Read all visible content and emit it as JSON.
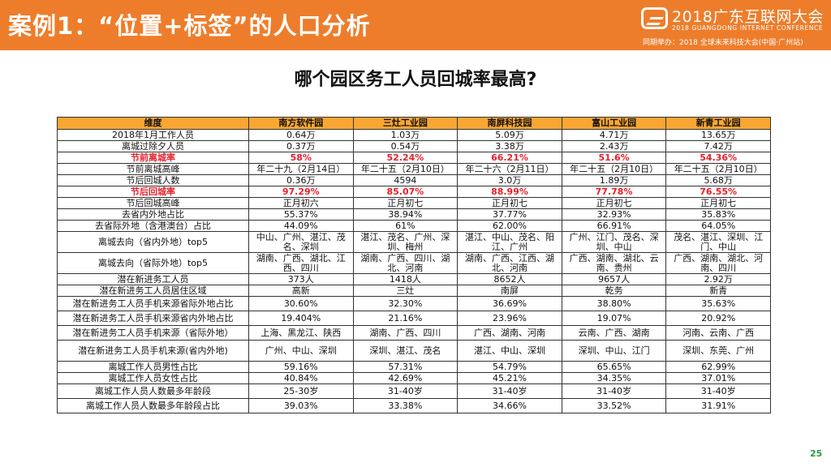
{
  "header": {
    "title": "案例1：“位置+标签”的人口分析",
    "logo_title": "2018广东互联网大会",
    "logo_subtitle": "2018 GUANGDONG INTERNET CONFERENCE",
    "logo_cohost": "同期举办：2018 全球未来科技大会(中国·广州站)"
  },
  "question": "哪个园区务工人员回城率最高?",
  "table": {
    "columns": [
      "维度",
      "南方软件园",
      "三灶工业园",
      "南屏科技园",
      "富山工业园",
      "新青工业园"
    ],
    "rows": [
      {
        "style": "",
        "cells": [
          "2018年1月工作人员",
          "0.64万",
          "1.03万",
          "5.09万",
          "4.71万",
          "13.65万"
        ]
      },
      {
        "style": "",
        "cells": [
          "离城过除夕人员",
          "0.37万",
          "0.54万",
          "3.38万",
          "2.43万",
          "7.42万"
        ]
      },
      {
        "style": "hl",
        "cells": [
          "节前离城率",
          "58%",
          "52.24%",
          "66.21%",
          "51.6%",
          "54.36%"
        ]
      },
      {
        "style": "",
        "cells": [
          "节前离城高峰",
          "年二十九（2月14日）",
          "年二十五（2月10日）",
          "年二十六（2月11日）",
          "年二十五（2月10日）",
          "年二十五（2月10日）"
        ]
      },
      {
        "style": "",
        "cells": [
          "节后回城人数",
          "0.36万",
          "4594",
          "3.0万",
          "1.89万",
          "5.68万"
        ]
      },
      {
        "style": "hl",
        "cells": [
          "节后回城率",
          "97.29%",
          "85.07%",
          "88.99%",
          "77.78%",
          "76.55%"
        ]
      },
      {
        "style": "",
        "cells": [
          "节后回城高峰",
          "正月初六",
          "正月初七",
          "正月初七",
          "正月初七",
          "正月初七"
        ]
      },
      {
        "style": "",
        "cells": [
          "去省内外地占比",
          "55.37%",
          "38.94%",
          "37.77%",
          "32.93%",
          "35.83%"
        ]
      },
      {
        "style": "",
        "cells": [
          "去省际外地（含港澳台）占比",
          "44.09%",
          "61%",
          "62.00%",
          "66.91%",
          "64.05%"
        ]
      },
      {
        "style": "tall",
        "cells": [
          "离城去向（省内外地）top5",
          "中山、广州、湛江、茂名、深圳",
          "湛江、茂名、广州、深圳、梅州",
          "湛江、中山、茂名、阳江、广州",
          "广州、江门、茂名、深圳、中山",
          "茂名、湛江、深圳、江门、中山"
        ]
      },
      {
        "style": "tall",
        "cells": [
          "离城去向（省际外地）top5",
          "湖南、广西、湖北、江西、四川",
          "湖南、广西、四川、湖北、河南",
          "湖南、广西、江西、湖北、河南",
          "广西、湖南、湖北、云南、贵州",
          "广西、湖南、湖北、河南、四川"
        ]
      },
      {
        "style": "",
        "cells": [
          "潜在新进务工人员",
          "373人",
          "1418人",
          "8652人",
          "9657人",
          "2.92万"
        ]
      },
      {
        "style": "",
        "cells": [
          "潜在新进务工人员居住区域",
          "高新",
          "三灶",
          "南屏",
          "乾务",
          "新青"
        ]
      },
      {
        "style": "mid",
        "cells": [
          "潜在新进务工人员手机来源省际外地占比",
          "30.60%",
          "32.30%",
          "36.69%",
          "38.80%",
          "35.63%"
        ]
      },
      {
        "style": "mid",
        "cells": [
          "潜在新进务工人员手机来源省内外地占比",
          "19.404%",
          "21.16%",
          "23.96%",
          "19.07%",
          "20.92%"
        ]
      },
      {
        "style": "mid",
        "cells": [
          "潜在新进务工人员手机来源（省际外地）",
          "上海、黑龙江、陕西",
          "湖南、广西、四川",
          "广西、湖南、河南",
          "云南、广西、湖南",
          "河南、云南、广西"
        ]
      },
      {
        "style": "tall",
        "cells": [
          "潜在新进务工人员手机来源(省内外地)",
          "广州、中山、深圳",
          "深圳、湛江、茂名",
          "湛江、中山、深圳",
          "深圳、中山、江门",
          "深圳、东莞、广州"
        ]
      },
      {
        "style": "",
        "cells": [
          "离城工作人员男性占比",
          "59.16%",
          "57.31%",
          "54.79%",
          "65.65%",
          "62.99%"
        ]
      },
      {
        "style": "",
        "cells": [
          "离城工作人员女性占比",
          "40.84%",
          "42.69%",
          "45.21%",
          "34.35%",
          "37.01%"
        ]
      },
      {
        "style": "mid",
        "cells": [
          "离城工作人员人数最多年龄段",
          "25-30岁",
          "31-40岁",
          "31-40岁",
          "31-40岁",
          "31-40岁"
        ]
      },
      {
        "style": "mid",
        "cells": [
          "离城工作人员人数最多年龄段占比",
          "39.03%",
          "33.38%",
          "34.66%",
          "33.52%",
          "31.91%"
        ]
      }
    ]
  },
  "page_number": "25",
  "colors": {
    "header_bg": "#ee7d2b",
    "table_header_bg": "#f9a633",
    "highlight_text": "#e8202a",
    "page_number": "#2a9a4a"
  }
}
